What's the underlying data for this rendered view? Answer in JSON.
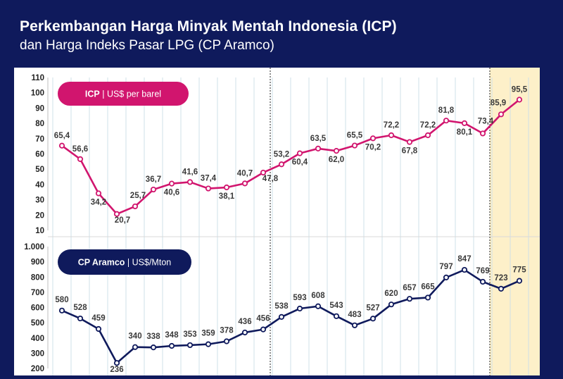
{
  "header": {
    "title": "Perkembangan Harga Minyak Mentah Indonesia (ICP)",
    "subtitle": "dan Harga Indeks Pasar LPG (CP Aramco)"
  },
  "colors": {
    "background": "#0f1a5c",
    "icp": "#d1156e",
    "cp_aramco": "#0f1a5c",
    "highlight": "#fdf0c9",
    "grid": "#cfe0e8"
  },
  "chart_data": [
    {
      "type": "line",
      "legend_badge": {
        "bold": "ICP",
        "rest": " | US$ per barel"
      },
      "ylim": [
        10,
        110
      ],
      "y_ticks": [
        "10",
        "20",
        "30",
        "40",
        "50",
        "60",
        "70",
        "80",
        "90",
        "100",
        "110"
      ],
      "series": [
        {
          "values": [
            65.4,
            56.6,
            34.2,
            20.7,
            25.7,
            36.7,
            40.6,
            41.6,
            37.4,
            38.1,
            40.7,
            47.8,
            53.2,
            60.4,
            63.5,
            62.0,
            65.5,
            70.2,
            72.2,
            67.8,
            72.2,
            81.8,
            80.1,
            73.4,
            85.9,
            95.5
          ],
          "labels": [
            "65,4",
            "56,6",
            "34,2",
            "20,7",
            "25,7",
            "36,7",
            "40,6",
            "41,6",
            "37,4",
            "38,1",
            "40,7",
            "47,8",
            "53,2",
            "60,4",
            "63,5",
            "62,0",
            "65,5",
            "70,2",
            "72,2",
            "67,8",
            "72,2",
            "81,8",
            "80,1",
            "73,4",
            "85,9",
            "95,5"
          ]
        }
      ]
    },
    {
      "type": "line",
      "legend_badge": {
        "bold": "CP Aramco",
        "rest": " | US$/Mton"
      },
      "ylim": [
        200,
        1000
      ],
      "y_ticks": [
        "200",
        "300",
        "400",
        "500",
        "600",
        "700",
        "800",
        "900",
        "1.000"
      ],
      "series": [
        {
          "values": [
            580,
            528,
            459,
            236,
            340,
            338,
            348,
            353,
            359,
            378,
            436,
            456,
            538,
            593,
            608,
            543,
            483,
            527,
            620,
            657,
            665,
            797,
            847,
            769,
            723,
            775
          ],
          "labels": [
            "580",
            "528",
            "459",
            "236",
            "340",
            "338",
            "348",
            "353",
            "359",
            "378",
            "436",
            "456",
            "538",
            "593",
            "608",
            "543",
            "483",
            "527",
            "620",
            "657",
            "665",
            "797",
            "847",
            "769",
            "723",
            "775"
          ]
        }
      ]
    }
  ]
}
